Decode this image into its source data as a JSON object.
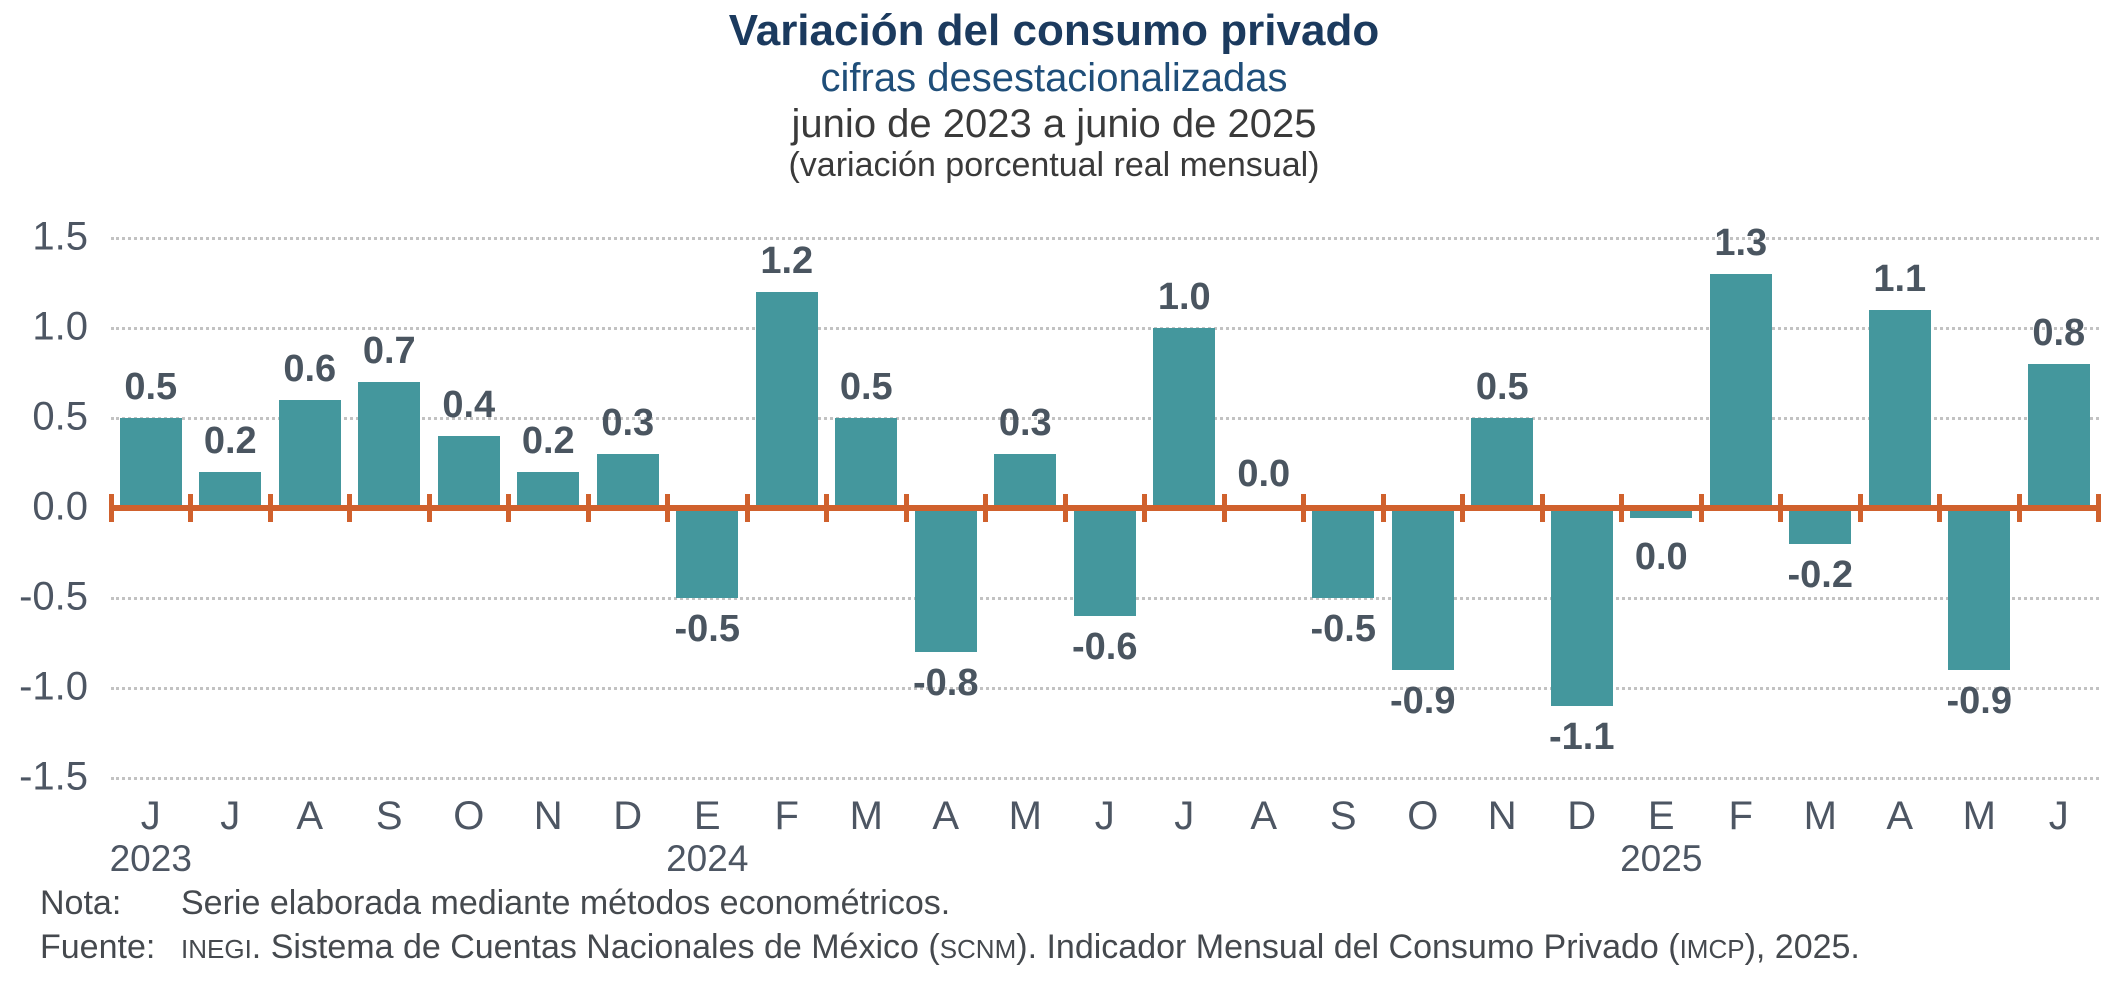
{
  "chart_data": {
    "type": "bar",
    "title": "Variación del consumo privado",
    "subtitle": [
      "cifras desestacionalizadas",
      "junio de 2023 a junio de 2025",
      "(variación porcentual real mensual)"
    ],
    "ylim": [
      -1.5,
      1.5
    ],
    "y_ticks": [
      "1.5",
      "1.0",
      "0.5",
      "0.0",
      "-0.5",
      "-1.0",
      "-1.5"
    ],
    "grid": "horizontal-dotted",
    "legend": "none",
    "bar_color": "#44979D",
    "zero_line_color": "#D0612D",
    "grid_color": "#C2C2C2",
    "value_label_color": "#4A5560",
    "axis_label_color": "#4D5663",
    "points": [
      {
        "year": 2023,
        "month": "J",
        "value": 0.5,
        "label": "0.5",
        "label_side": "above"
      },
      {
        "year": 2023,
        "month": "J",
        "value": 0.2,
        "label": "0.2",
        "label_side": "above"
      },
      {
        "year": 2023,
        "month": "A",
        "value": 0.6,
        "label": "0.6",
        "label_side": "above"
      },
      {
        "year": 2023,
        "month": "S",
        "value": 0.7,
        "label": "0.7",
        "label_side": "above"
      },
      {
        "year": 2023,
        "month": "O",
        "value": 0.4,
        "label": "0.4",
        "label_side": "above"
      },
      {
        "year": 2023,
        "month": "N",
        "value": 0.2,
        "label": "0.2",
        "label_side": "above"
      },
      {
        "year": 2023,
        "month": "D",
        "value": 0.3,
        "label": "0.3",
        "label_side": "above"
      },
      {
        "year": 2024,
        "month": "E",
        "value": -0.5,
        "label": "-0.5",
        "label_side": "below"
      },
      {
        "year": 2024,
        "month": "F",
        "value": 1.2,
        "label": "1.2",
        "label_side": "above"
      },
      {
        "year": 2024,
        "month": "M",
        "value": 0.5,
        "label": "0.5",
        "label_side": "above"
      },
      {
        "year": 2024,
        "month": "A",
        "value": -0.8,
        "label": "-0.8",
        "label_side": "below"
      },
      {
        "year": 2024,
        "month": "M",
        "value": 0.3,
        "label": "0.3",
        "label_side": "above"
      },
      {
        "year": 2024,
        "month": "J",
        "value": -0.6,
        "label": "-0.6",
        "label_side": "below"
      },
      {
        "year": 2024,
        "month": "J",
        "value": 1.0,
        "label": "1.0",
        "label_side": "above"
      },
      {
        "year": 2024,
        "month": "A",
        "value": 0.0,
        "label": "0.0",
        "label_side": "above"
      },
      {
        "year": 2024,
        "month": "S",
        "value": -0.5,
        "label": "-0.5",
        "label_side": "below"
      },
      {
        "year": 2024,
        "month": "O",
        "value": -0.9,
        "label": "-0.9",
        "label_side": "below"
      },
      {
        "year": 2024,
        "month": "N",
        "value": 0.5,
        "label": "0.5",
        "label_side": "above"
      },
      {
        "year": 2024,
        "month": "D",
        "value": -1.1,
        "label": "-1.1",
        "label_side": "below"
      },
      {
        "year": 2025,
        "month": "E",
        "value": 0.0,
        "label": "0.0",
        "label_side": "below"
      },
      {
        "year": 2025,
        "month": "F",
        "value": 1.3,
        "label": "1.3",
        "label_side": "above"
      },
      {
        "year": 2025,
        "month": "M",
        "value": -0.2,
        "label": "-0.2",
        "label_side": "below"
      },
      {
        "year": 2025,
        "month": "A",
        "value": 1.1,
        "label": "1.1",
        "label_side": "above"
      },
      {
        "year": 2025,
        "month": "M",
        "value": -0.9,
        "label": "-0.9",
        "label_side": "below"
      },
      {
        "year": 2025,
        "month": "J",
        "value": 0.8,
        "label": "0.8",
        "label_side": "above"
      }
    ],
    "year_axis_labels": [
      {
        "label": "2023",
        "slot": 0
      },
      {
        "label": "2024",
        "slot": 7
      },
      {
        "label": "2025",
        "slot": 19
      }
    ]
  },
  "footer": {
    "nota_label": "Nota:",
    "nota_text": "Serie elaborada mediante métodos econométricos.",
    "fuente_label": "Fuente:",
    "fuente_segments": [
      {
        "text": "INEGI",
        "caps": true
      },
      {
        "text": ". Sistema de Cuentas Nacionales de México (",
        "caps": false
      },
      {
        "text": "SCNM",
        "caps": true
      },
      {
        "text": "). Indicador Mensual del Consumo Privado (",
        "caps": false
      },
      {
        "text": "IMCP",
        "caps": true
      },
      {
        "text": "), 2025.",
        "caps": false
      }
    ]
  }
}
